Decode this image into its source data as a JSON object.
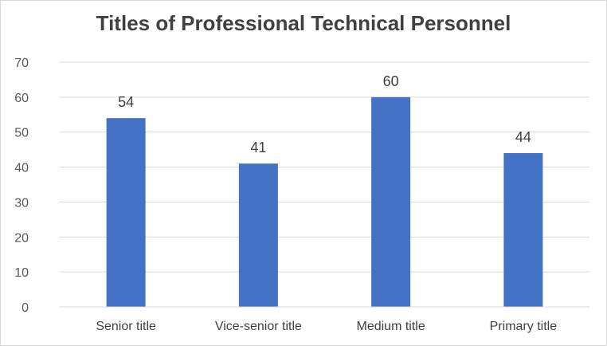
{
  "chart_data": {
    "type": "bar",
    "title": "Titles of Professional Technical Personnel",
    "xlabel": "",
    "ylabel": "",
    "categories": [
      "Senior title",
      "Vice-senior title",
      "Medium title",
      "Primary title"
    ],
    "values": [
      54,
      41,
      60,
      44
    ],
    "ylim": [
      0,
      70
    ],
    "yticks": [
      0,
      10,
      20,
      30,
      40,
      50,
      60,
      70
    ],
    "grid": true,
    "legend": "none",
    "bar_color": "#4472C4"
  }
}
